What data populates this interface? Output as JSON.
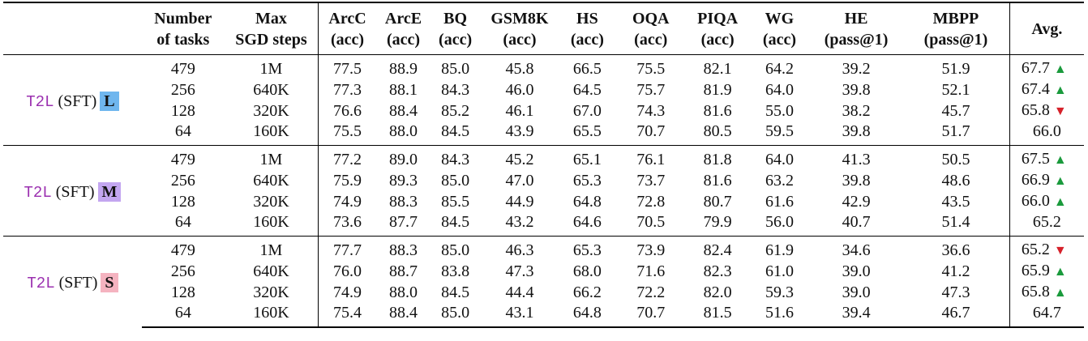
{
  "header": {
    "num_tasks": [
      "Number",
      "of tasks"
    ],
    "sgd_steps": [
      "Max",
      "SGD steps"
    ],
    "benchmarks": [
      {
        "name": "ArcC",
        "metric": "(acc)"
      },
      {
        "name": "ArcE",
        "metric": "(acc)"
      },
      {
        "name": "BQ",
        "metric": "(acc)"
      },
      {
        "name": "GSM8K",
        "metric": "(acc)"
      },
      {
        "name": "HS",
        "metric": "(acc)"
      },
      {
        "name": "OQA",
        "metric": "(acc)"
      },
      {
        "name": "PIQA",
        "metric": "(acc)"
      },
      {
        "name": "WG",
        "metric": "(acc)"
      },
      {
        "name": "HE",
        "metric": "(pass@1)"
      },
      {
        "name": "MBPP",
        "metric": "(pass@1)"
      }
    ],
    "avg": "Avg."
  },
  "groups": [
    {
      "model": "T2L",
      "method": "(SFT)",
      "size": "L",
      "size_color": "#6fb6ee",
      "rows": [
        {
          "tasks": "479",
          "steps": "1M",
          "vals": [
            "77.5",
            "88.9",
            "85.0",
            "45.8",
            "66.5",
            "75.5",
            "82.1",
            "64.2",
            "39.2",
            "51.9"
          ],
          "avg": "67.7",
          "trend": "up"
        },
        {
          "tasks": "256",
          "steps": "640K",
          "vals": [
            "77.3",
            "88.1",
            "84.3",
            "46.0",
            "64.5",
            "75.7",
            "81.9",
            "64.0",
            "39.8",
            "52.1"
          ],
          "avg": "67.4",
          "trend": "up"
        },
        {
          "tasks": "128",
          "steps": "320K",
          "vals": [
            "76.6",
            "88.4",
            "85.2",
            "46.1",
            "67.0",
            "74.3",
            "81.6",
            "55.0",
            "38.2",
            "45.7"
          ],
          "avg": "65.8",
          "trend": "down"
        },
        {
          "tasks": "64",
          "steps": "160K",
          "vals": [
            "75.5",
            "88.0",
            "84.5",
            "43.9",
            "65.5",
            "70.7",
            "80.5",
            "59.5",
            "39.8",
            "51.7"
          ],
          "avg": "66.0",
          "trend": ""
        }
      ]
    },
    {
      "model": "T2L",
      "method": "(SFT)",
      "size": "M",
      "size_color": "#c3a6f0",
      "rows": [
        {
          "tasks": "479",
          "steps": "1M",
          "vals": [
            "77.2",
            "89.0",
            "84.3",
            "45.2",
            "65.1",
            "76.1",
            "81.8",
            "64.0",
            "41.3",
            "50.5"
          ],
          "avg": "67.5",
          "trend": "up"
        },
        {
          "tasks": "256",
          "steps": "640K",
          "vals": [
            "75.9",
            "89.3",
            "85.0",
            "47.0",
            "65.3",
            "73.7",
            "81.6",
            "63.2",
            "39.8",
            "48.6"
          ],
          "avg": "66.9",
          "trend": "up"
        },
        {
          "tasks": "128",
          "steps": "320K",
          "vals": [
            "74.9",
            "88.3",
            "85.5",
            "44.9",
            "64.8",
            "72.8",
            "80.7",
            "61.6",
            "42.9",
            "43.5"
          ],
          "avg": "66.0",
          "trend": "up"
        },
        {
          "tasks": "64",
          "steps": "160K",
          "vals": [
            "73.6",
            "87.7",
            "84.5",
            "43.2",
            "64.6",
            "70.5",
            "79.9",
            "56.0",
            "40.7",
            "51.4"
          ],
          "avg": "65.2",
          "trend": ""
        }
      ]
    },
    {
      "model": "T2L",
      "method": "(SFT)",
      "size": "S",
      "size_color": "#f5b3c0",
      "rows": [
        {
          "tasks": "479",
          "steps": "1M",
          "vals": [
            "77.7",
            "88.3",
            "85.0",
            "46.3",
            "65.3",
            "73.9",
            "82.4",
            "61.9",
            "34.6",
            "36.6"
          ],
          "avg": "65.2",
          "trend": "down"
        },
        {
          "tasks": "256",
          "steps": "640K",
          "vals": [
            "76.0",
            "88.7",
            "83.8",
            "47.3",
            "68.0",
            "71.6",
            "82.3",
            "61.0",
            "39.0",
            "41.2"
          ],
          "avg": "65.9",
          "trend": "up"
        },
        {
          "tasks": "128",
          "steps": "320K",
          "vals": [
            "74.9",
            "88.0",
            "84.5",
            "44.4",
            "66.2",
            "72.2",
            "82.0",
            "59.3",
            "39.0",
            "47.3"
          ],
          "avg": "65.8",
          "trend": "up"
        },
        {
          "tasks": "64",
          "steps": "160K",
          "vals": [
            "75.4",
            "88.4",
            "85.0",
            "43.1",
            "64.8",
            "70.7",
            "81.5",
            "51.6",
            "39.4",
            "46.7"
          ],
          "avg": "64.7",
          "trend": ""
        }
      ]
    }
  ]
}
